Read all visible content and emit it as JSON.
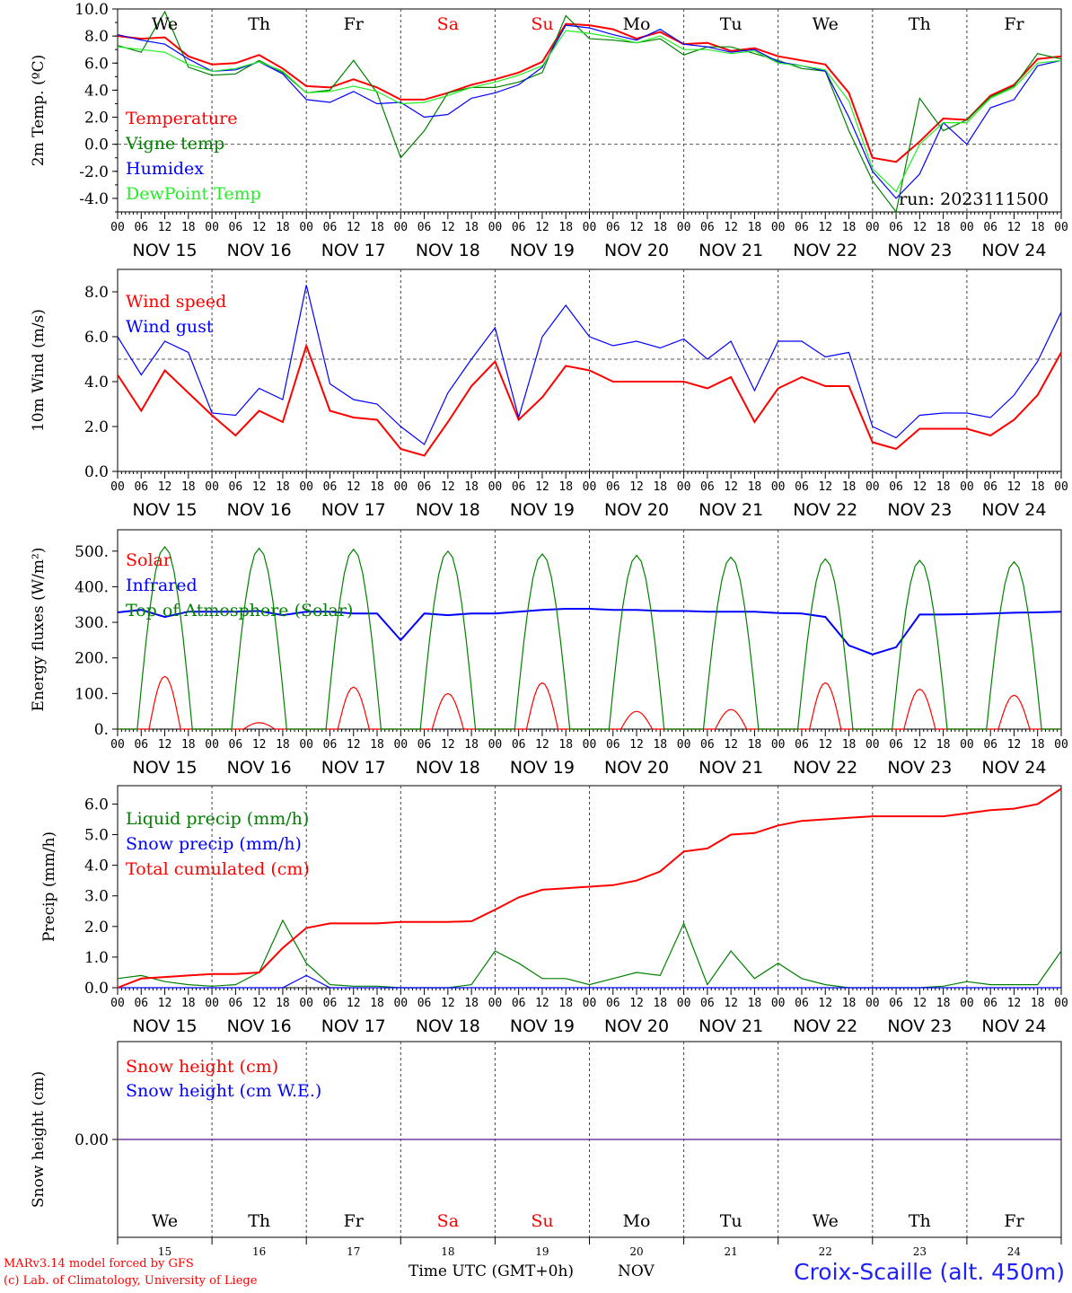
{
  "chart_data": [
    {
      "type": "line",
      "ylabel": "2m Temp. (ºC)",
      "ylim": [
        -5,
        10
      ],
      "yticks": [
        "10.0",
        "8.0",
        "6.0",
        "4.0",
        "2.0",
        "0.0",
        "-2.0",
        "-4.0"
      ],
      "reference_line": 0,
      "annotation": "run: 2023111500",
      "x_hours": [
        0,
        6,
        12,
        18,
        24,
        30,
        36,
        42,
        48,
        54,
        60,
        66,
        72,
        78,
        84,
        90,
        96,
        102,
        108,
        114,
        120,
        126,
        132,
        138,
        144,
        150,
        156,
        162,
        168,
        174,
        180,
        186,
        192,
        198,
        204,
        210,
        216,
        222,
        228,
        234,
        240
      ],
      "series": [
        {
          "name": "Temperature",
          "color": "#ff0000",
          "values": [
            8.0,
            7.8,
            7.9,
            6.5,
            5.9,
            6.0,
            6.6,
            5.6,
            4.3,
            4.2,
            4.8,
            4.2,
            3.3,
            3.3,
            3.8,
            4.4,
            4.8,
            5.3,
            6.1,
            8.9,
            8.8,
            8.5,
            7.8,
            8.3,
            7.4,
            7.5,
            6.9,
            7.1,
            6.5,
            6.2,
            5.9,
            3.8,
            -1.0,
            -1.3,
            0.2,
            1.9,
            1.8,
            3.6,
            4.4,
            6.3,
            6.5
          ]
        },
        {
          "name": "Vigne temp",
          "color": "#008000",
          "values": [
            7.3,
            6.8,
            9.8,
            5.7,
            5.1,
            5.2,
            6.2,
            5.3,
            3.8,
            4.0,
            6.2,
            3.8,
            -1.0,
            1.0,
            3.8,
            4.2,
            4.2,
            4.6,
            5.3,
            9.5,
            7.8,
            7.7,
            7.5,
            7.8,
            6.6,
            7.2,
            7.2,
            6.7,
            6.2,
            5.6,
            5.4,
            1.0,
            -2.7,
            -5.0,
            3.4,
            1.0,
            1.8,
            3.5,
            4.3,
            6.7,
            6.3
          ]
        },
        {
          "name": "Humidex",
          "color": "#0000ff",
          "values": [
            8.1,
            7.7,
            7.4,
            6.3,
            5.4,
            5.5,
            6.1,
            5.2,
            3.3,
            3.1,
            3.9,
            3.0,
            3.1,
            2.0,
            2.2,
            3.4,
            3.8,
            4.4,
            5.7,
            8.8,
            8.6,
            8.1,
            7.7,
            8.5,
            7.4,
            7.2,
            6.8,
            7.0,
            6.1,
            5.8,
            5.4,
            2.0,
            -2.0,
            -4.0,
            -2.2,
            1.6,
            0.0,
            2.7,
            3.3,
            5.8,
            6.2
          ]
        },
        {
          "name": "DewPoint Temp",
          "color": "#22ee22",
          "values": [
            7.2,
            7.0,
            6.8,
            5.9,
            5.4,
            5.6,
            6.1,
            5.4,
            3.8,
            3.9,
            4.3,
            3.9,
            3.0,
            3.1,
            3.6,
            4.2,
            4.6,
            5.1,
            5.8,
            8.4,
            8.2,
            7.9,
            7.5,
            8.0,
            7.0,
            7.0,
            6.7,
            6.9,
            6.0,
            5.8,
            5.5,
            3.2,
            -1.8,
            -3.5,
            0.0,
            1.6,
            1.6,
            3.4,
            4.2,
            6.0,
            6.2
          ]
        }
      ]
    },
    {
      "type": "line",
      "ylabel": "10m Wind (m/s)",
      "ylim": [
        0,
        9
      ],
      "yticks": [
        "8.0",
        "6.0",
        "4.0",
        "2.0",
        "0.0"
      ],
      "reference_line": 5,
      "x_hours": [
        0,
        6,
        12,
        18,
        24,
        30,
        36,
        42,
        48,
        54,
        60,
        66,
        72,
        78,
        84,
        90,
        96,
        102,
        108,
        114,
        120,
        126,
        132,
        138,
        144,
        150,
        156,
        162,
        168,
        174,
        180,
        186,
        192,
        198,
        204,
        210,
        216,
        222,
        228,
        234,
        240
      ],
      "series": [
        {
          "name": "Wind speed",
          "color": "#ff0000",
          "values": [
            4.3,
            2.7,
            4.5,
            3.5,
            2.5,
            1.6,
            2.7,
            2.2,
            5.6,
            2.7,
            2.4,
            2.3,
            1.0,
            0.7,
            2.2,
            3.8,
            4.9,
            2.3,
            3.3,
            4.7,
            4.5,
            4.0,
            4.0,
            4.0,
            4.0,
            3.7,
            4.2,
            2.2,
            3.7,
            4.2,
            3.8,
            3.8,
            1.3,
            1.0,
            1.9,
            1.9,
            1.9,
            1.6,
            2.3,
            3.4,
            5.3
          ]
        },
        {
          "name": "Wind gust",
          "color": "#0000ff",
          "values": [
            6.0,
            4.3,
            5.8,
            5.3,
            2.6,
            2.5,
            3.7,
            3.2,
            8.3,
            3.9,
            3.2,
            3.0,
            2.0,
            1.2,
            3.5,
            5.0,
            6.4,
            2.4,
            6.0,
            7.4,
            6.0,
            5.6,
            5.8,
            5.5,
            5.9,
            5.0,
            5.8,
            3.6,
            5.8,
            5.8,
            5.1,
            5.3,
            2.0,
            1.5,
            2.5,
            2.6,
            2.6,
            2.4,
            3.4,
            4.9,
            7.1
          ]
        }
      ]
    },
    {
      "type": "line",
      "ylabel": "Energy fluxes (W/m²)",
      "ylim": [
        0,
        560
      ],
      "yticks": [
        "500.",
        "400.",
        "300.",
        "200.",
        "100.",
        "0."
      ],
      "series": [
        {
          "name": "Solar",
          "color": "#ff0000",
          "daily_peaks": [
            148,
            18,
            118,
            100,
            130,
            50,
            55,
            130,
            112,
            95
          ]
        },
        {
          "name": "Infrared",
          "color": "#0000ff",
          "x_hours": [
            0,
            6,
            12,
            18,
            24,
            30,
            36,
            42,
            48,
            54,
            60,
            66,
            72,
            78,
            84,
            90,
            96,
            102,
            108,
            114,
            120,
            126,
            132,
            138,
            144,
            150,
            156,
            162,
            168,
            174,
            180,
            186,
            192,
            198,
            204,
            210,
            216,
            222,
            228,
            234,
            240
          ],
          "values": [
            328,
            335,
            315,
            330,
            330,
            330,
            332,
            320,
            330,
            330,
            325,
            325,
            250,
            325,
            320,
            325,
            325,
            330,
            335,
            338,
            338,
            335,
            335,
            332,
            332,
            330,
            330,
            330,
            326,
            325,
            315,
            235,
            210,
            230,
            322,
            322,
            323,
            325,
            327,
            328,
            330
          ]
        },
        {
          "name": "Top of Atmosphere (Solar)",
          "color": "#008000",
          "daily_peaks": [
            512,
            508,
            505,
            500,
            492,
            488,
            483,
            478,
            474,
            470
          ]
        }
      ]
    },
    {
      "type": "line",
      "ylabel": "Precip (mm/h)",
      "ylim": [
        0,
        6.6
      ],
      "yticks": [
        "6.0",
        "5.0",
        "4.0",
        "3.0",
        "2.0",
        "1.0",
        "0.0"
      ],
      "x_hours": [
        0,
        6,
        12,
        18,
        24,
        30,
        36,
        42,
        48,
        54,
        60,
        66,
        72,
        78,
        84,
        90,
        96,
        102,
        108,
        114,
        120,
        126,
        132,
        138,
        144,
        150,
        156,
        162,
        168,
        174,
        180,
        186,
        192,
        198,
        204,
        210,
        216,
        222,
        228,
        234,
        240
      ],
      "series": [
        {
          "name": "Liquid precip (mm/h)",
          "color": "#008000",
          "values": [
            0.3,
            0.4,
            0.2,
            0.1,
            0.05,
            0.1,
            0.5,
            2.2,
            0.8,
            0.1,
            0.05,
            0.05,
            0.0,
            0.0,
            0.0,
            0.1,
            1.2,
            0.8,
            0.3,
            0.3,
            0.1,
            0.3,
            0.5,
            0.4,
            2.1,
            0.1,
            1.2,
            0.3,
            0.8,
            0.3,
            0.1,
            0.0,
            0.0,
            0.0,
            0.0,
            0.05,
            0.2,
            0.1,
            0.1,
            0.1,
            1.2
          ]
        },
        {
          "name": "Snow precip (mm/h)",
          "color": "#0000ff",
          "values": [
            0,
            0,
            0,
            0,
            0,
            0,
            0,
            0,
            0.4,
            0,
            0,
            0,
            0,
            0,
            0,
            0,
            0,
            0,
            0,
            0,
            0,
            0,
            0,
            0,
            0,
            0,
            0,
            0,
            0,
            0,
            0,
            0,
            0,
            0,
            0,
            0,
            0,
            0,
            0,
            0,
            0
          ]
        },
        {
          "name": "Total cumulated (cm)",
          "color": "#ff0000",
          "values": [
            0.0,
            0.3,
            0.35,
            0.4,
            0.45,
            0.45,
            0.5,
            1.3,
            1.95,
            2.1,
            2.1,
            2.1,
            2.15,
            2.15,
            2.15,
            2.17,
            2.55,
            2.95,
            3.2,
            3.25,
            3.3,
            3.35,
            3.5,
            3.8,
            4.45,
            4.55,
            5.0,
            5.05,
            5.3,
            5.45,
            5.5,
            5.55,
            5.6,
            5.6,
            5.6,
            5.6,
            5.7,
            5.8,
            5.85,
            6.0,
            6.5
          ]
        }
      ]
    },
    {
      "type": "line",
      "ylabel": "Snow height (cm)",
      "ylim": [
        -1,
        1
      ],
      "yticks": [
        "0.00"
      ],
      "series": [
        {
          "name": "Snow height (cm)",
          "color": "#ff0000",
          "values": [
            0,
            0
          ]
        },
        {
          "name": "Snow height (cm W.E.)",
          "color": "#0000ff",
          "values": [
            0,
            0
          ]
        }
      ]
    }
  ],
  "days_of_week": [
    "We",
    "Th",
    "Fr",
    "Sa",
    "Su",
    "Mo",
    "Tu",
    "We",
    "Th",
    "Fr"
  ],
  "weekend_color": "#ff0000",
  "date_labels": [
    "NOV 15",
    "NOV 16",
    "NOV 17",
    "NOV 18",
    "NOV 19",
    "NOV 20",
    "NOV 21",
    "NOV 22",
    "NOV 23",
    "NOV 24"
  ],
  "day_numbers": [
    "15",
    "16",
    "17",
    "18",
    "19",
    "20",
    "21",
    "22",
    "23",
    "24"
  ],
  "hour_ticks": [
    "00",
    "06",
    "12",
    "18"
  ],
  "footer": {
    "model_line": "MARv3.14 model forced by GFS",
    "credit_line": "(c) Lab. of Climatology, University of Liege",
    "xaxis_title": "Time UTC (GMT+0h)",
    "month": "NOV",
    "station": "Croix-Scaille (alt. 450m)"
  }
}
